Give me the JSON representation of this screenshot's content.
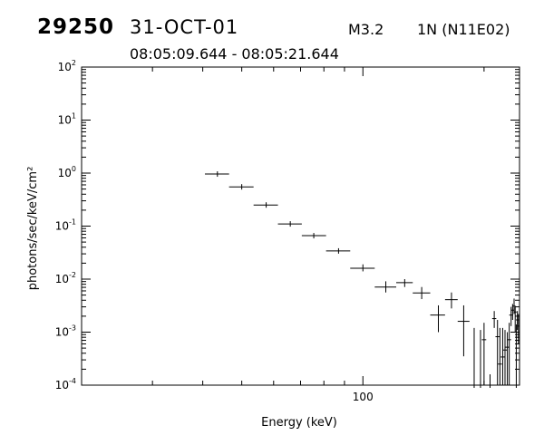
{
  "header": {
    "event_id": "29250",
    "date": "31-OCT-01",
    "goes_class": "M3.2",
    "h_alpha": "1N (N11E02)",
    "time_range": "08:05:09.644 - 08:05:21.644"
  },
  "chart_data": {
    "type": "scatter",
    "title": "",
    "xlabel": "Energy (keV)",
    "ylabel": "photons/sec/keV/cm²",
    "xscale": "log",
    "yscale": "log",
    "xlim": [
      20,
      245
    ],
    "ylim": [
      0.0001,
      100
    ],
    "x_ticks": [
      {
        "value": 100,
        "label": "100"
      }
    ],
    "y_ticks": [
      {
        "value": 0.0001,
        "base": "10",
        "exp": "-4"
      },
      {
        "value": 0.001,
        "base": "10",
        "exp": "-3"
      },
      {
        "value": 0.01,
        "base": "10",
        "exp": "-2"
      },
      {
        "value": 0.1,
        "base": "10",
        "exp": "-1"
      },
      {
        "value": 1,
        "base": "10",
        "exp": "0"
      },
      {
        "value": 10,
        "base": "10",
        "exp": "1"
      },
      {
        "value": 100,
        "base": "10",
        "exp": "2"
      }
    ],
    "grid": false,
    "legend": "none",
    "marker": "error-bar crosses",
    "points": [
      {
        "x": 43.5,
        "xlo": 40.5,
        "xhi": 46.5,
        "y": 0.96,
        "ylo": 0.96,
        "yhi": 0.96
      },
      {
        "x": 50.0,
        "xlo": 46.5,
        "xhi": 53.5,
        "y": 0.55,
        "ylo": 0.55,
        "yhi": 0.55
      },
      {
        "x": 57.5,
        "xlo": 53.5,
        "xhi": 61.5,
        "y": 0.25,
        "ylo": 0.24,
        "yhi": 0.26
      },
      {
        "x": 66.0,
        "xlo": 61.5,
        "xhi": 70.5,
        "y": 0.11,
        "ylo": 0.1,
        "yhi": 0.12
      },
      {
        "x": 75.5,
        "xlo": 70.5,
        "xhi": 81.0,
        "y": 0.066,
        "ylo": 0.062,
        "yhi": 0.07
      },
      {
        "x": 87.0,
        "xlo": 81.0,
        "xhi": 93.0,
        "y": 0.034,
        "ylo": 0.031,
        "yhi": 0.038
      },
      {
        "x": 100.0,
        "xlo": 93.0,
        "xhi": 107.0,
        "y": 0.016,
        "ylo": 0.014,
        "yhi": 0.019
      },
      {
        "x": 114.0,
        "xlo": 107.0,
        "xhi": 121.0,
        "y": 0.0071,
        "ylo": 0.0056,
        "yhi": 0.0091
      },
      {
        "x": 127.0,
        "xlo": 121.0,
        "xhi": 133.0,
        "y": 0.0086,
        "ylo": 0.0071,
        "yhi": 0.01
      },
      {
        "x": 140.0,
        "xlo": 133.0,
        "xhi": 147.0,
        "y": 0.0055,
        "ylo": 0.0042,
        "yhi": 0.0071
      },
      {
        "x": 154.0,
        "xlo": 147.0,
        "xhi": 160.0,
        "y": 0.0021,
        "ylo": 0.001,
        "yhi": 0.0032
      },
      {
        "x": 166.0,
        "xlo": 160.0,
        "xhi": 172.0,
        "y": 0.0041,
        "ylo": 0.0028,
        "yhi": 0.0056
      },
      {
        "x": 178.0,
        "xlo": 172.0,
        "xhi": 184.0,
        "y": 0.0016,
        "ylo": 0.00035,
        "yhi": 0.0032
      },
      {
        "x": 189.0,
        "xlo": 186.5,
        "xhi": 191.5,
        "y": 0.0001,
        "ylo": 0.0001,
        "yhi": 0.0012
      },
      {
        "x": 196.0,
        "xlo": 193.5,
        "xhi": 198.5,
        "y": 0.0001,
        "ylo": 0.0001,
        "yhi": 0.0011
      },
      {
        "x": 200.0,
        "xlo": 197.5,
        "xhi": 202.5,
        "y": 0.00072,
        "ylo": 0.0001,
        "yhi": 0.0015
      },
      {
        "x": 207.0,
        "xlo": 204.5,
        "xhi": 209.5,
        "y": 0.0001,
        "ylo": 0.0001,
        "yhi": 0.00016
      },
      {
        "x": 212.0,
        "xlo": 209.5,
        "xhi": 214.5,
        "y": 0.0018,
        "ylo": 0.0012,
        "yhi": 0.0025
      },
      {
        "x": 216.0,
        "xlo": 213.5,
        "xhi": 218.5,
        "y": 0.00082,
        "ylo": 0.0001,
        "yhi": 0.0017
      },
      {
        "x": 219.0,
        "xlo": 216.5,
        "xhi": 221.5,
        "y": 0.00025,
        "ylo": 0.0001,
        "yhi": 0.0012
      },
      {
        "x": 222.5,
        "xlo": 220.0,
        "xhi": 225.0,
        "y": 0.00034,
        "ylo": 0.0001,
        "yhi": 0.0012
      },
      {
        "x": 225.5,
        "xlo": 223.0,
        "xhi": 228.0,
        "y": 0.00046,
        "ylo": 0.0001,
        "yhi": 0.0011
      },
      {
        "x": 228.5,
        "xlo": 226.0,
        "xhi": 231.0,
        "y": 0.00052,
        "ylo": 0.0001,
        "yhi": 0.001
      },
      {
        "x": 231.0,
        "xlo": 228.5,
        "xhi": 233.5,
        "y": 0.00072,
        "ylo": 0.0001,
        "yhi": 0.0015
      },
      {
        "x": 233.5,
        "xlo": 231.0,
        "xhi": 236.0,
        "y": 0.0021,
        "ylo": 0.0013,
        "yhi": 0.003
      },
      {
        "x": 235.5,
        "xlo": 233.5,
        "xhi": 237.5,
        "y": 0.0026,
        "ylo": 0.0017,
        "yhi": 0.0034
      },
      {
        "x": 237.5,
        "xlo": 235.5,
        "xhi": 239.5,
        "y": 0.0031,
        "ylo": 0.0022,
        "yhi": 0.0043
      },
      {
        "x": 239.0,
        "xlo": 237.0,
        "xhi": 241.0,
        "y": 0.0024,
        "ylo": 0.001,
        "yhi": 0.003
      },
      {
        "x": 240.5,
        "xlo": 238.5,
        "xhi": 242.5,
        "y": 0.0001,
        "ylo": 0.0001,
        "yhi": 0.0014
      },
      {
        "x": 242.0,
        "xlo": 240.0,
        "xhi": 244.0,
        "y": 0.0017,
        "ylo": 0.0011,
        "yhi": 0.0025
      },
      {
        "x": 243.5,
        "xlo": 241.5,
        "xhi": 245.0,
        "y": 0.0013,
        "ylo": 0.0006,
        "yhi": 0.0022
      }
    ]
  }
}
